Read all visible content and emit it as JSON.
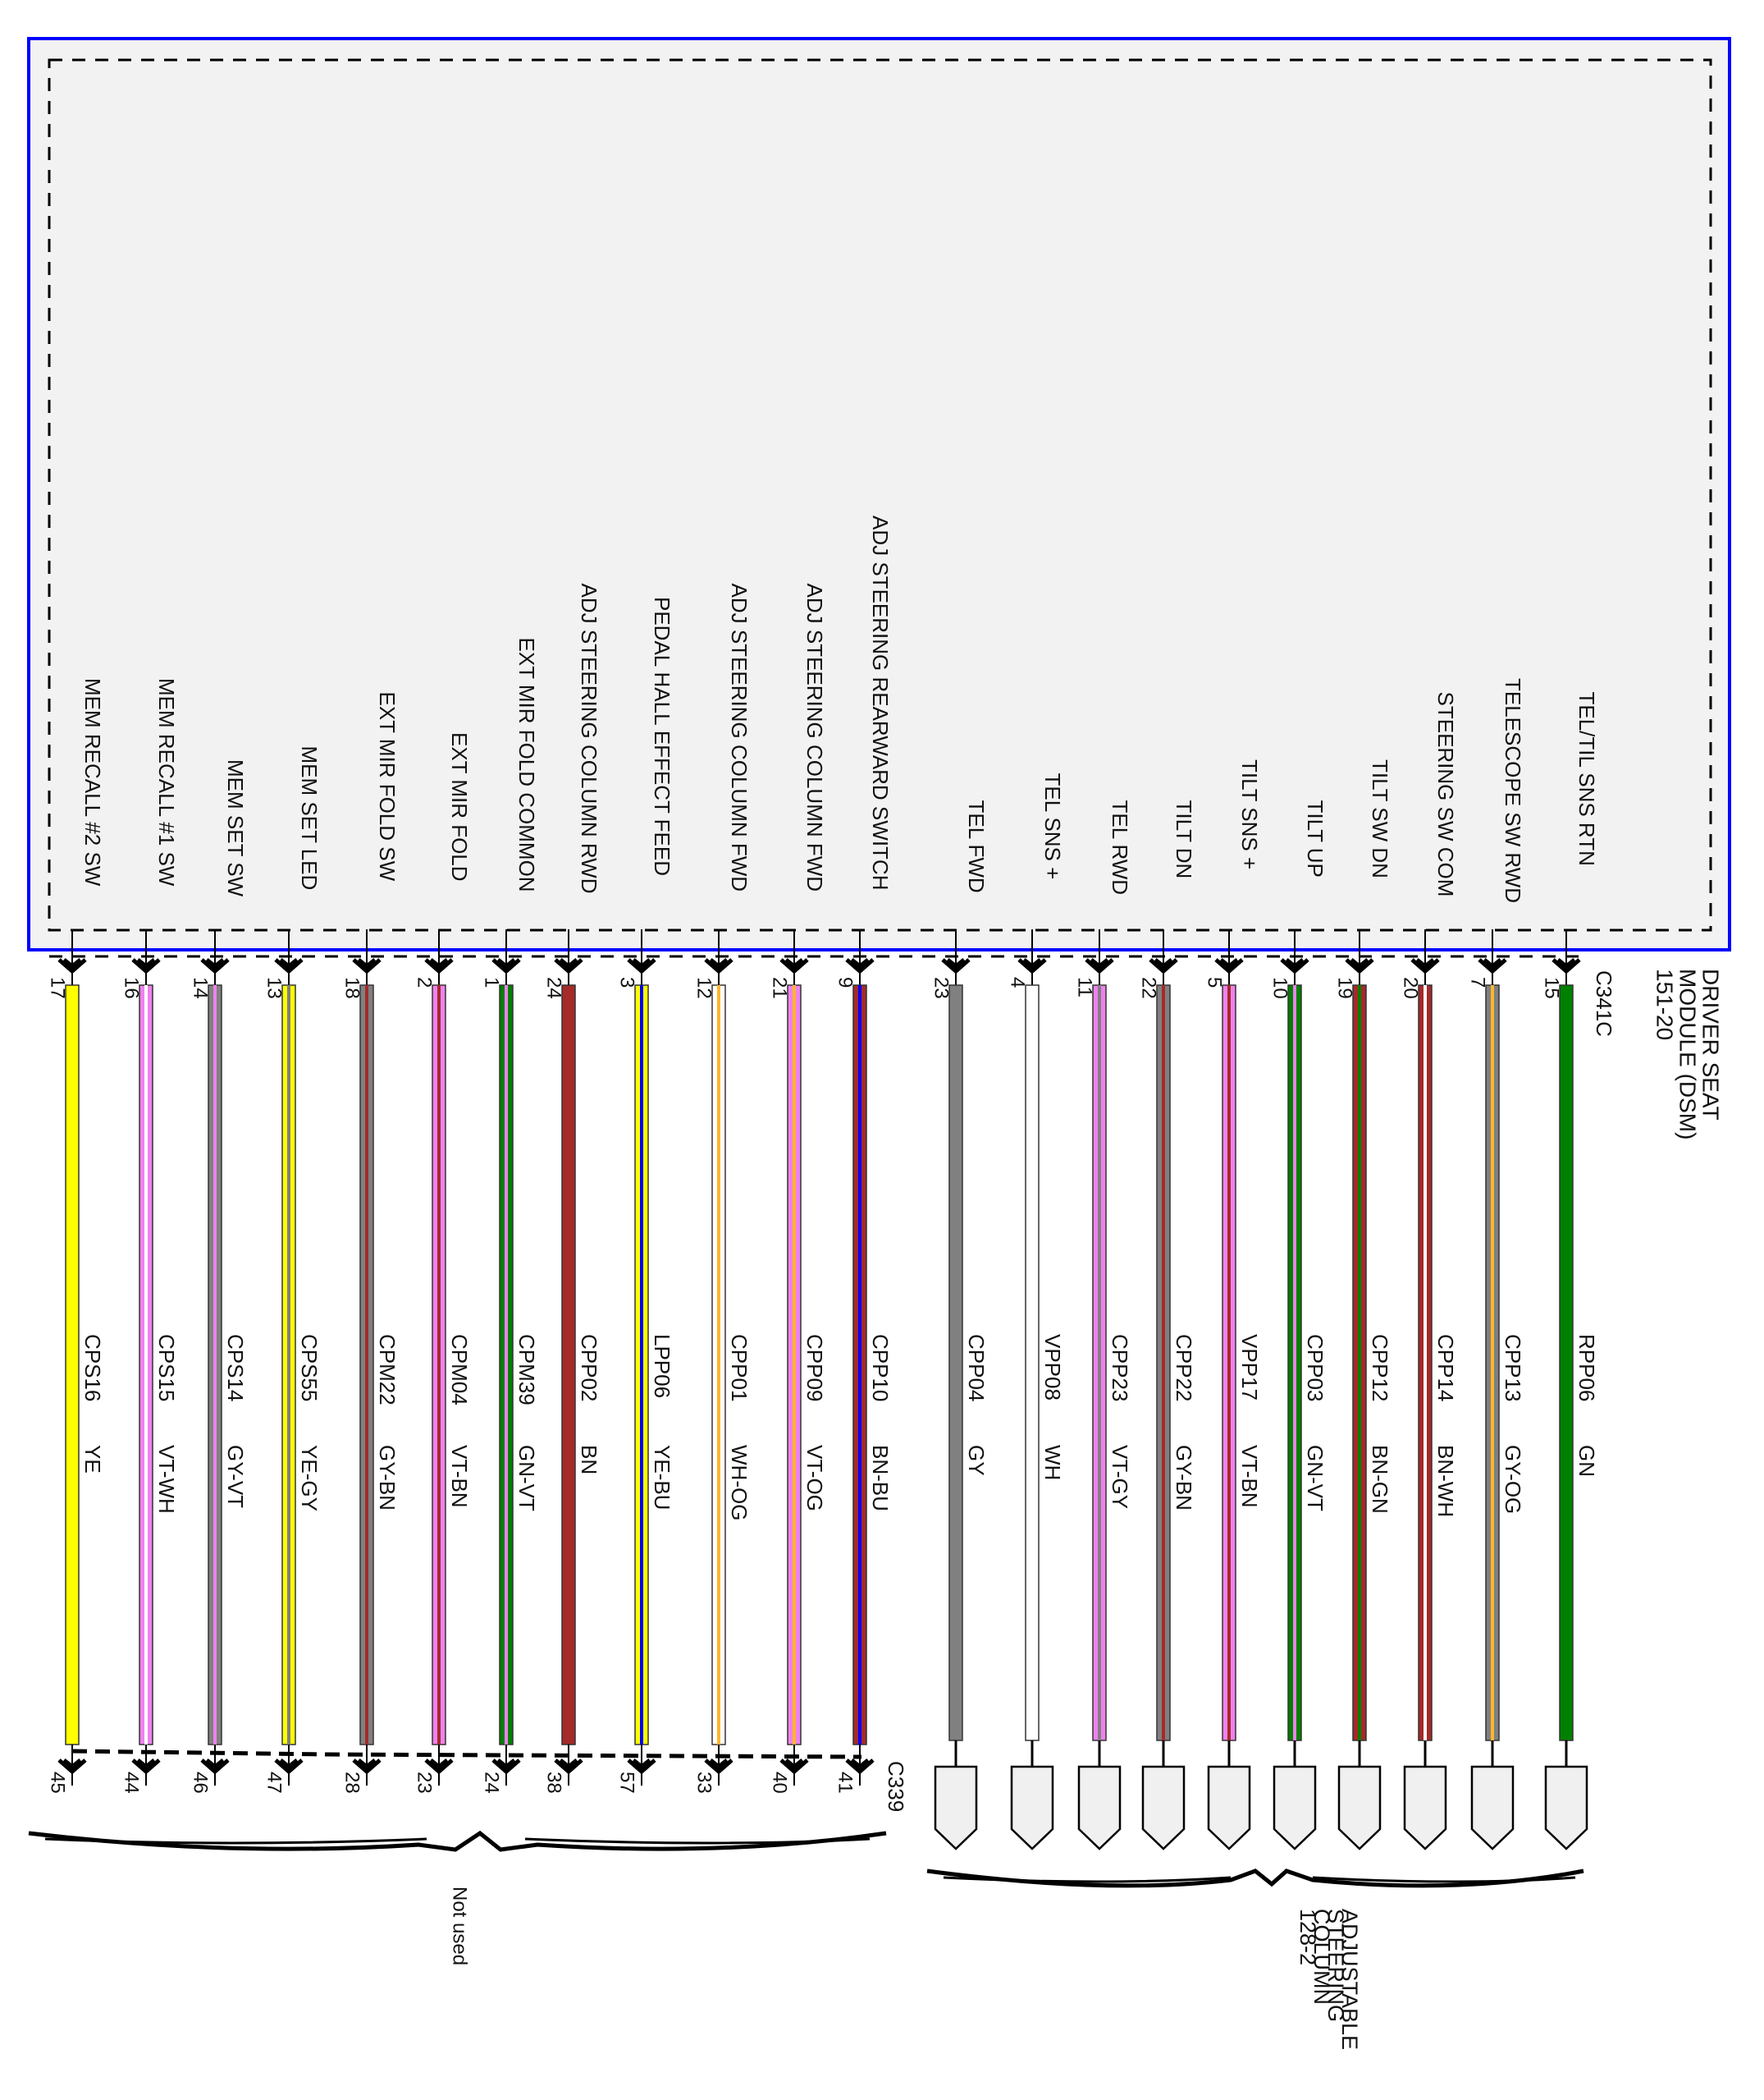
{
  "module": {
    "name_lines": [
      "DRIVER SEAT",
      "MODULE (DSM)",
      "151-20"
    ],
    "connector": "C341C",
    "frame_color": "#0000FF",
    "fill_color": "#F2F2F2"
  },
  "left_group": {
    "bottom_connector": "C339",
    "label": "Not used",
    "wires": [
      {
        "function": "MEM RECALL #2 SW",
        "pin_top": "17",
        "circuit": "CPS16",
        "color_code": "YE",
        "base": "#FFFF00",
        "stripe": null,
        "pin_bottom": "45"
      },
      {
        "function": "MEM RECALL #1 SW",
        "pin_top": "16",
        "circuit": "CPS15",
        "color_code": "VT-WH",
        "base": "#EE82EE",
        "stripe": "#FFFFFF",
        "pin_bottom": "44"
      },
      {
        "function": "MEM SET SW",
        "pin_top": "14",
        "circuit": "CPS14",
        "color_code": "GY-VT",
        "base": "#808080",
        "stripe": "#EE82EE",
        "pin_bottom": "46"
      },
      {
        "function": "MEM SET LED",
        "pin_top": "13",
        "circuit": "CPS55",
        "color_code": "YE-GY",
        "base": "#FFFF00",
        "stripe": "#808080",
        "pin_bottom": "47"
      },
      {
        "function": "EXT MIR FOLD SW",
        "pin_top": "18",
        "circuit": "CPM22",
        "color_code": "GY-BN",
        "base": "#808080",
        "stripe": "#A52A2A",
        "pin_bottom": "28"
      },
      {
        "function": "EXT MIR FOLD",
        "pin_top": "2",
        "circuit": "CPM04",
        "color_code": "VT-BN",
        "base": "#EE82EE",
        "stripe": "#A52A2A",
        "pin_bottom": "23"
      },
      {
        "function": "EXT MIR FOLD COMMON",
        "pin_top": "1",
        "circuit": "CPM39",
        "color_code": "GN-VT",
        "base": "#008000",
        "stripe": "#EE82EE",
        "pin_bottom": "24"
      },
      {
        "function": "ADJ STEERING COLUMN RWD",
        "pin_top": "24",
        "circuit": "CPP02",
        "color_code": "BN",
        "base": "#A52A2A",
        "stripe": null,
        "pin_bottom": "38"
      },
      {
        "function": "PEDAL HALL EFFECT FEED",
        "pin_top": "3",
        "circuit": "LPP06",
        "color_code": "YE-BU",
        "base": "#FFFF00",
        "stripe": "#0000FF",
        "pin_bottom": "57"
      },
      {
        "function": "ADJ STEERING COLUMN FWD",
        "pin_top": "12",
        "circuit": "CPP01",
        "color_code": "WH-OG",
        "base": "#FFFFFF",
        "stripe": "#FFB52E",
        "pin_bottom": "33"
      },
      {
        "function": "ADJ STEERING COLUMN FWD",
        "pin_top": "21",
        "circuit": "CPP09",
        "color_code": "VT-OG",
        "base": "#EE82EE",
        "stripe": "#FFB52E",
        "pin_bottom": "40"
      },
      {
        "function": "ADJ STEERING REARWARD SWITCH",
        "pin_top": "9",
        "circuit": "CPP10",
        "color_code": "BN-BU",
        "base": "#A52A2A",
        "stripe": "#0000FF",
        "pin_bottom": "41"
      }
    ]
  },
  "right_group": {
    "label_lines": [
      "ADJUSTABLE",
      "STEERING",
      "COLUMN",
      "128-2"
    ],
    "wires": [
      {
        "function": "TEL FWD",
        "pin_top": "23",
        "circuit": "CPP04",
        "color_code": "GY",
        "base": "#808080",
        "stripe": null
      },
      {
        "function": "TEL SNS +",
        "pin_top": "4",
        "circuit": "VPP08",
        "color_code": "WH",
        "base": "#FFFFFF",
        "stripe": null
      },
      {
        "function": "TEL RWD",
        "pin_top": "11",
        "circuit": "CPP23",
        "color_code": "VT-GY",
        "base": "#EE82EE",
        "stripe": "#808080"
      },
      {
        "function": "TILT DN",
        "pin_top": "22",
        "circuit": "CPP22",
        "color_code": "GY-BN",
        "base": "#808080",
        "stripe": "#A52A2A"
      },
      {
        "function": "TILT SNS +",
        "pin_top": "5",
        "circuit": "VPP17",
        "color_code": "VT-BN",
        "base": "#EE82EE",
        "stripe": "#A52A2A"
      },
      {
        "function": "TILT UP",
        "pin_top": "10",
        "circuit": "CPP03",
        "color_code": "GN-VT",
        "base": "#008000",
        "stripe": "#EE82EE"
      },
      {
        "function": "TILT SW DN",
        "pin_top": "19",
        "circuit": "CPP12",
        "color_code": "BN-GN",
        "base": "#A52A2A",
        "stripe": "#008000"
      },
      {
        "function": "STEERING SW COM",
        "pin_top": "20",
        "circuit": "CPP14",
        "color_code": "BN-WH",
        "base": "#A52A2A",
        "stripe": "#FFFFFF"
      },
      {
        "function": "TELESCOPE SW RWD",
        "pin_top": "7",
        "circuit": "CPP13",
        "color_code": "GY-OG",
        "base": "#808080",
        "stripe": "#FFB52E"
      },
      {
        "function": "TEL/TIL SNS RTN",
        "pin_top": "15",
        "circuit": "RPP06",
        "color_code": "GN",
        "base": "#008000",
        "stripe": null
      }
    ]
  }
}
